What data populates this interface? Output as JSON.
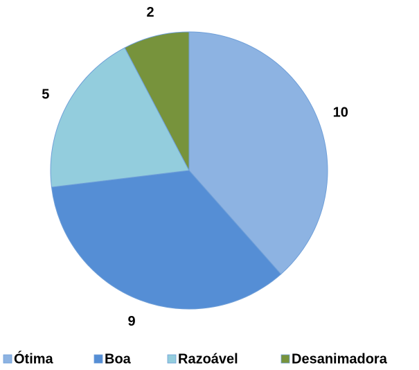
{
  "chart_data": {
    "type": "pie",
    "categories": [
      "Ótima",
      "Boa",
      "Razoável",
      "Desanimadora"
    ],
    "values": [
      10,
      9,
      5,
      2
    ],
    "colors": [
      "#8db3e2",
      "#558ed5",
      "#93cddd",
      "#77933c"
    ],
    "legend": "bottom"
  }
}
